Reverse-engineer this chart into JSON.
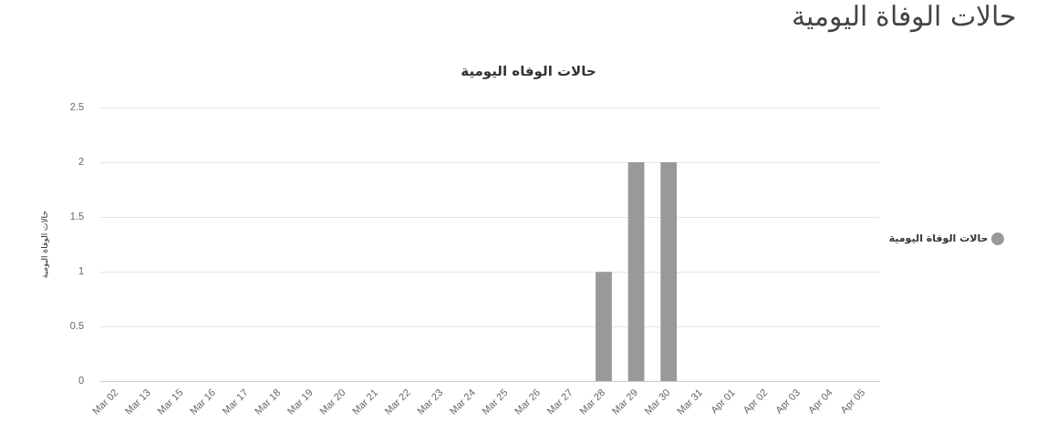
{
  "chart_data": {
    "type": "bar",
    "subtitle": "حالات الوفاة اليومية",
    "title": "حالات الوفاه اليومية",
    "ylabel": "حالات الوفاة اليومية",
    "categories": [
      "Mar 02",
      "Mar 13",
      "Mar 15",
      "Mar 16",
      "Mar 17",
      "Mar 18",
      "Mar 19",
      "Mar 20",
      "Mar 21",
      "Mar 22",
      "Mar 23",
      "Mar 24",
      "Mar 25",
      "Mar 26",
      "Mar 27",
      "Mar 28",
      "Mar 29",
      "Mar 30",
      "Mar 31",
      "Apr 01",
      "Apr 02",
      "Apr 03",
      "Apr 04",
      "Apr 05"
    ],
    "series": [
      {
        "name": "حالات الوفاة اليومية",
        "color": "#999999",
        "values": [
          0,
          0,
          0,
          0,
          0,
          0,
          0,
          0,
          0,
          0,
          0,
          0,
          0,
          0,
          0,
          1,
          2,
          2,
          0,
          0,
          0,
          0,
          0,
          0
        ]
      }
    ],
    "ylim": [
      0,
      2.5
    ],
    "yticks": [
      0,
      0.5,
      1,
      1.5,
      2,
      2.5
    ],
    "grid": "y",
    "legend": "right"
  }
}
